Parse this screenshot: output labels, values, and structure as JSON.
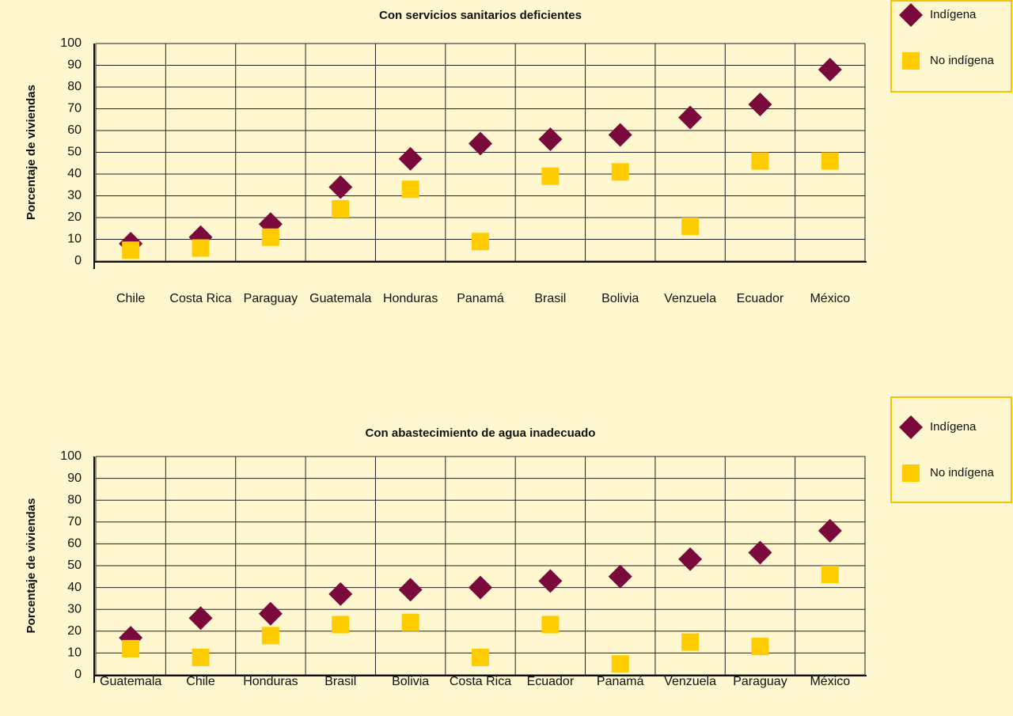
{
  "chart_data": [
    {
      "type": "scatter",
      "title": "Con servicios sanitarios deficientes",
      "y_label": "Porcentaje de viviendas",
      "categories": [
        "Chile",
        "Costa Rica",
        "Paraguay",
        "Guatemala",
        "Honduras",
        "Panamá",
        "Brasil",
        "Bolivia",
        "Venzuela",
        "Ecuador",
        "México"
      ],
      "series": [
        {
          "name": "Indígena",
          "color": "#7a0a3c",
          "marker": "diamond",
          "values": [
            8,
            11,
            17,
            34,
            47,
            54,
            56,
            58,
            66,
            72,
            88
          ]
        },
        {
          "name": "No indígena",
          "color": "#ffcc00",
          "marker": "square",
          "values": [
            5,
            6,
            11,
            24,
            33,
            9,
            39,
            41,
            16,
            46,
            46
          ]
        }
      ],
      "ylim": [
        0,
        100
      ],
      "yticks": [
        0,
        10,
        20,
        30,
        40,
        50,
        60,
        70,
        80,
        90,
        100
      ],
      "grid": true
    },
    {
      "type": "scatter",
      "title": "Con abastecimiento de agua inadecuado",
      "y_label": "Porcentaje de viviendas",
      "categories": [
        "Guatemala",
        "Chile",
        "Honduras",
        "Brasil",
        "Bolivia",
        "Costa Rica",
        "Ecuador",
        "Panamá",
        "Venzuela",
        "Paraguay",
        "México"
      ],
      "series": [
        {
          "name": "Indígena",
          "color": "#7a0a3c",
          "marker": "diamond",
          "values": [
            17,
            26,
            28,
            37,
            39,
            40,
            43,
            45,
            53,
            56,
            66
          ]
        },
        {
          "name": "No indígena",
          "color": "#ffcc00",
          "marker": "square",
          "values": [
            12,
            8,
            18,
            23,
            24,
            8,
            23,
            5,
            15,
            13,
            46
          ]
        }
      ],
      "ylim": [
        0,
        100
      ],
      "yticks": [
        0,
        10,
        20,
        30,
        40,
        50,
        60,
        70,
        80,
        90,
        100
      ],
      "grid": true
    }
  ]
}
